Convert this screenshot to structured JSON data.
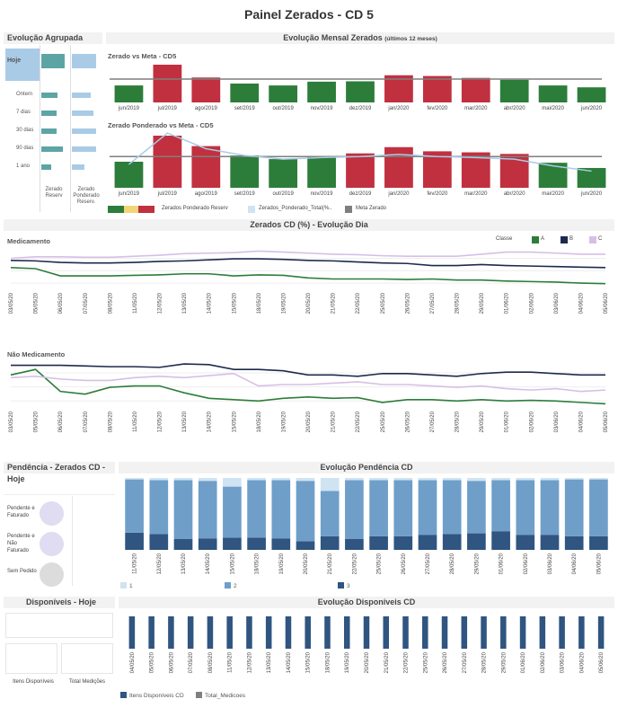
{
  "page": {
    "title": "Painel Zerados - CD 5"
  },
  "colors": {
    "green": "#2d7d3a",
    "red": "#c1303f",
    "navy": "#1d2a4e",
    "lilac": "#d6bfe6",
    "blue_light": "#a9cbe6",
    "blue_mid": "#6f9ec9",
    "blue_dark": "#2f5580",
    "teal": "#5da5a5",
    "grey_line": "#7f7f7f",
    "pale_blue": "#cfe3f2"
  },
  "agrupada": {
    "header": "Evolução Agrupada",
    "rows": [
      "Hoje",
      "Ontem",
      "7 dias",
      "30 dias",
      "90 dias",
      "1 ano"
    ],
    "col1": "Zerado Reserv",
    "col2": "Zerado Ponderado Reserv.",
    "col1_values": [
      0.85,
      0.6,
      0.55,
      0.55,
      0.8,
      0.35
    ],
    "col2_values": [
      0.85,
      0.65,
      0.75,
      0.85,
      0.85,
      0.45
    ]
  },
  "mensal": {
    "header": "Evolução Mensal Zerados",
    "header_note": "(últimos 12 meses)",
    "chart1_title": "Zerado vs Meta - CD5",
    "chart2_title": "Zerado Ponderado vs Meta - CD5",
    "legend": [
      "Zerados Ponderado Reserv",
      "Zerados_Ponderado_Total(%..",
      "Meta Zerado"
    ]
  },
  "dia": {
    "header": "Zerados CD (%) - Evolução Dia",
    "chart1_title": "Medicamento",
    "chart2_title": "Não Medicamento",
    "classe_label": "Classe",
    "classes": [
      "A",
      "B",
      "C"
    ]
  },
  "pendencia": {
    "header": "Pendência - Zerados CD - Hoje",
    "items": [
      "Pendente e Faturado",
      "Pendente e Não Faturado",
      "Sem Pedido"
    ],
    "evol_header": "Evolução Pendência CD",
    "legend": [
      "1",
      "2",
      "3"
    ]
  },
  "disponiveis": {
    "header": "Disponíveis - Hoje",
    "item_label": "Itens Disponíveis",
    "total_label": "Total Medições",
    "evol_header": "Evolução Disponíveis CD",
    "legend": [
      "Itens Disponíveis CD",
      "Total_Medicoes"
    ]
  },
  "chart_data": [
    {
      "type": "bar",
      "title": "Zerado vs Meta - CD5",
      "categories": [
        "jun/2019",
        "jul/2019",
        "ago/2019",
        "set/2019",
        "out/2019",
        "nov/2019",
        "dez/2019",
        "jan/2020",
        "fev/2020",
        "mar/2020",
        "abr/2020",
        "mai/2020",
        "jun/2020"
      ],
      "values": [
        0.45,
        1.0,
        0.66,
        0.5,
        0.45,
        0.55,
        0.56,
        0.72,
        0.7,
        0.65,
        0.6,
        0.45,
        0.4
      ],
      "meta": 0.62,
      "status": [
        "below",
        "above",
        "above",
        "below",
        "below",
        "below",
        "below",
        "above",
        "above",
        "above",
        "below",
        "below",
        "below"
      ]
    },
    {
      "type": "bar",
      "title": "Zerado Ponderado vs Meta - CD5",
      "categories": [
        "jun/2019",
        "jul/2019",
        "ago/2019",
        "set/2019",
        "out/2019",
        "nov/2019",
        "dez/2019",
        "jan/2020",
        "fev/2020",
        "mar/2020",
        "abr/2020",
        "mai/2020",
        "jun/2020"
      ],
      "values": [
        0.5,
        1.0,
        0.8,
        0.62,
        0.55,
        0.6,
        0.66,
        0.78,
        0.7,
        0.68,
        0.65,
        0.48,
        0.38
      ],
      "line": [
        0.45,
        1.05,
        0.75,
        0.62,
        0.55,
        0.58,
        0.6,
        0.64,
        0.6,
        0.58,
        0.55,
        0.42,
        0.32
      ],
      "meta": 0.6,
      "status": [
        "below",
        "above",
        "above",
        "below",
        "below",
        "below",
        "above",
        "above",
        "above",
        "above",
        "above",
        "below",
        "below"
      ]
    },
    {
      "type": "line",
      "title": "Medicamento",
      "x": [
        "03/05/20",
        "05/05/20",
        "06/05/20",
        "07/05/20",
        "08/05/20",
        "11/05/20",
        "12/05/20",
        "13/05/20",
        "14/05/20",
        "15/05/20",
        "18/05/20",
        "19/05/20",
        "20/05/20",
        "21/05/20",
        "22/05/20",
        "25/05/20",
        "26/05/20",
        "27/05/20",
        "28/05/20",
        "29/05/20",
        "01/06/20",
        "02/06/20",
        "03/06/20",
        "04/06/20",
        "05/06/20"
      ],
      "series": [
        {
          "name": "A",
          "values": [
            3.9,
            3.8,
            3.1,
            3.1,
            3.1,
            3.15,
            3.2,
            3.3,
            3.3,
            3.1,
            3.2,
            3.15,
            2.9,
            2.8,
            2.8,
            2.8,
            2.75,
            2.8,
            2.7,
            2.7,
            2.6,
            2.55,
            2.5,
            2.4,
            2.35
          ]
        },
        {
          "name": "B",
          "values": [
            4.6,
            4.55,
            4.4,
            4.35,
            4.35,
            4.4,
            4.5,
            4.55,
            4.65,
            4.75,
            4.75,
            4.7,
            4.6,
            4.55,
            4.45,
            4.35,
            4.3,
            4.1,
            4.1,
            4.2,
            4.1,
            4.05,
            4.0,
            3.95,
            3.9
          ]
        },
        {
          "name": "C",
          "values": [
            4.8,
            4.95,
            4.95,
            4.9,
            4.9,
            5.0,
            5.1,
            5.25,
            5.3,
            5.35,
            5.5,
            5.4,
            5.3,
            5.2,
            5.15,
            5.05,
            5.0,
            5.0,
            5.0,
            5.2,
            5.4,
            5.4,
            5.3,
            5.2,
            5.2
          ]
        }
      ]
    },
    {
      "type": "line",
      "title": "Não Medicamento",
      "x": [
        "03/05/20",
        "05/05/20",
        "06/05/20",
        "07/05/20",
        "08/05/20",
        "11/05/20",
        "12/05/20",
        "13/05/20",
        "14/05/20",
        "15/05/20",
        "18/05/20",
        "19/05/20",
        "20/05/20",
        "21/05/20",
        "22/05/20",
        "25/05/20",
        "26/05/20",
        "27/05/20",
        "28/05/20",
        "29/05/20",
        "01/06/20",
        "02/06/20",
        "03/06/20",
        "04/06/20",
        "05/06/20"
      ],
      "series": [
        {
          "name": "A",
          "values": [
            4.2,
            4.6,
            3.0,
            2.8,
            3.3,
            3.4,
            3.4,
            2.9,
            2.5,
            2.4,
            2.3,
            2.5,
            2.6,
            2.5,
            2.55,
            2.2,
            2.4,
            2.4,
            2.3,
            2.4,
            2.3,
            2.35,
            2.3,
            2.2,
            2.1
          ]
        },
        {
          "name": "B",
          "values": [
            4.9,
            4.9,
            4.9,
            4.85,
            4.8,
            4.8,
            4.75,
            5.0,
            4.95,
            4.6,
            4.6,
            4.5,
            4.2,
            4.2,
            4.1,
            4.3,
            4.3,
            4.2,
            4.1,
            4.3,
            4.4,
            4.4,
            4.3,
            4.2,
            4.2
          ]
        },
        {
          "name": "C",
          "values": [
            4.0,
            4.1,
            3.9,
            3.8,
            3.8,
            4.0,
            4.1,
            4.0,
            4.15,
            4.3,
            3.4,
            3.5,
            3.5,
            3.6,
            3.7,
            3.5,
            3.5,
            3.4,
            3.3,
            3.4,
            3.2,
            3.1,
            3.2,
            3.0,
            3.1
          ]
        }
      ]
    },
    {
      "type": "bar",
      "title": "Evolução Pendência CD",
      "categories": [
        "11/05/20",
        "12/05/20",
        "13/05/20",
        "14/05/20",
        "15/05/20",
        "18/05/20",
        "19/05/20",
        "20/05/20",
        "21/05/20",
        "22/05/20",
        "25/05/20",
        "26/05/20",
        "27/05/20",
        "28/05/20",
        "29/05/20",
        "01/06/20",
        "02/06/20",
        "03/06/20",
        "04/06/20",
        "05/06/20"
      ],
      "series": [
        {
          "name": "3",
          "values": [
            24,
            22,
            15,
            16,
            17,
            17,
            16,
            12,
            19,
            15,
            19,
            19,
            21,
            22,
            23,
            26,
            21,
            21,
            19,
            19
          ]
        },
        {
          "name": "2",
          "values": [
            74,
            75,
            82,
            80,
            71,
            80,
            81,
            84,
            63,
            82,
            78,
            78,
            76,
            75,
            73,
            71,
            76,
            76,
            79,
            79
          ]
        },
        {
          "name": "1",
          "values": [
            2,
            3,
            3,
            4,
            12,
            3,
            3,
            4,
            18,
            3,
            3,
            3,
            3,
            3,
            4,
            3,
            3,
            3,
            2,
            2
          ]
        }
      ]
    },
    {
      "type": "bar",
      "title": "Evolução Disponíveis CD",
      "categories": [
        "04/05/20",
        "05/05/20",
        "06/05/20",
        "07/05/20",
        "08/05/20",
        "11/05/20",
        "12/05/20",
        "13/05/20",
        "14/05/20",
        "15/05/20",
        "18/05/20",
        "19/05/20",
        "20/05/20",
        "21/05/20",
        "22/05/20",
        "25/05/20",
        "26/05/20",
        "27/05/20",
        "28/05/20",
        "29/05/20",
        "01/06/20",
        "02/06/20",
        "03/06/20",
        "04/06/20",
        "05/06/20"
      ],
      "series": [
        {
          "name": "Itens Disponíveis CD",
          "values": [
            100,
            100,
            100,
            100,
            100,
            100,
            100,
            100,
            100,
            100,
            100,
            100,
            100,
            100,
            100,
            100,
            100,
            100,
            100,
            100,
            100,
            100,
            100,
            100,
            100
          ]
        }
      ]
    }
  ]
}
